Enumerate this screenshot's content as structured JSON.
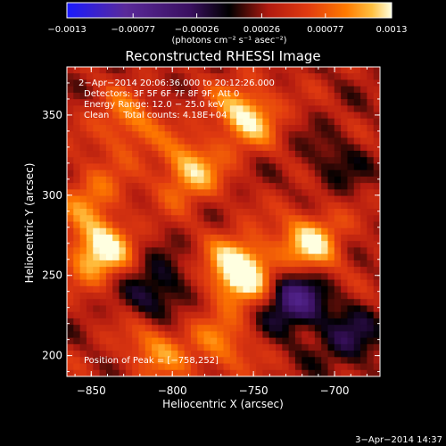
{
  "chart_data": {
    "type": "heatmap",
    "title": "Reconstructed RHESSI Image",
    "xlabel": "Heliocentric X (arcsec)",
    "ylabel": "Heliocentric Y (arcsec)",
    "xlim": [
      -865,
      -672
    ],
    "ylim": [
      187,
      380
    ],
    "x_ticks": [
      -850,
      -800,
      -750,
      -700
    ],
    "y_ticks": [
      200,
      250,
      300,
      350
    ],
    "x_tick_labels": [
      "−850",
      "−800",
      "−750",
      "−700"
    ],
    "y_tick_labels": [
      "200",
      "250",
      "300",
      "350"
    ],
    "colorbar": {
      "ticks": [
        -0.0013,
        -0.00077,
        -0.00026,
        0.00026,
        0.00077,
        0.0013
      ],
      "tick_labels": [
        "−0.0013",
        "−0.00077",
        "−0.00026",
        "0.00026",
        "0.00077",
        "0.0013"
      ],
      "units": "(photons cm⁻² s⁻¹ asec⁻²)",
      "range": [
        -0.0013,
        0.0013
      ],
      "colormap": [
        "#1a1aff",
        "#5a2a9a",
        "#3a1060",
        "#000000",
        "#b01a10",
        "#e03a10",
        "#ff7a00",
        "#ffc040",
        "#ffffe0"
      ]
    },
    "annotations": [
      "2−Apr−2014 20:06:36.000 to 20:12:26.000",
      "Detectors: 3F 5F 6F 7F 8F 9F, Att 0",
      "Energy Range: 12.0 − 25.0 keV",
      "Clean     Total counts: 4.18E+04"
    ],
    "peak_label": "Position of Peak = [−758,252]",
    "peak_position": [
      -758,
      252
    ],
    "sources": [
      {
        "x": -758,
        "y": 252,
        "peak": 0.0013
      },
      {
        "x": -845,
        "y": 265,
        "peak": 0.001
      },
      {
        "x": -715,
        "y": 270,
        "peak": 0.0009
      },
      {
        "x": -790,
        "y": 315,
        "peak": 0.0008
      },
      {
        "x": -755,
        "y": 350,
        "peak": 0.0009
      },
      {
        "x": -828,
        "y": 345,
        "peak": 0.0006
      },
      {
        "x": -850,
        "y": 300,
        "peak": 0.0005
      },
      {
        "x": -810,
        "y": 205,
        "peak": 0.0006
      },
      {
        "x": -770,
        "y": 205,
        "peak": 0.0005
      },
      {
        "x": -700,
        "y": 320,
        "peak": -0.0003
      },
      {
        "x": -725,
        "y": 235,
        "peak": -0.0009
      },
      {
        "x": -810,
        "y": 240,
        "peak": -0.0006
      },
      {
        "x": -690,
        "y": 210,
        "peak": -0.0005
      }
    ]
  },
  "footer": {
    "date": "3−Apr−2014 14:37"
  }
}
